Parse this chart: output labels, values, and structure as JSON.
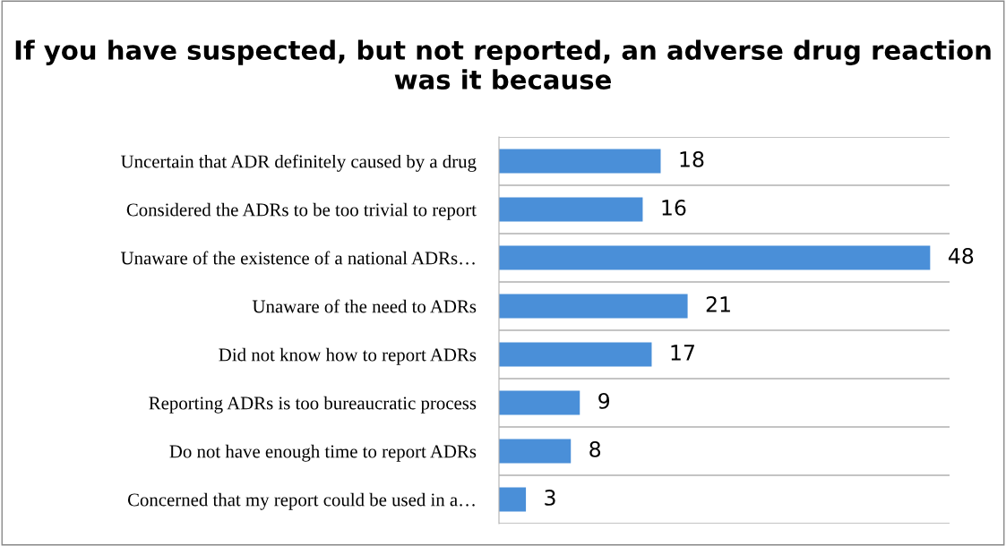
{
  "chart_data": {
    "type": "bar",
    "orientation": "horizontal",
    "title": "If you have suspected, but not reported, an adverse drug reaction was it because",
    "categories": [
      "Uncertain that ADR definitely caused by a drug",
      "Considered the ADRs to be too trivial to report",
      "Unaware of the existence of a national ADRs…",
      "Unaware of the need to ADRs",
      "Did not know how to report ADRs",
      "Reporting ADRs is too bureaucratic process",
      "Do not have enough time to report ADRs",
      "Concerned that my report could be used in a…"
    ],
    "values": [
      18,
      16,
      48,
      21,
      17,
      9,
      8,
      3
    ],
    "color": "#4a8fd8",
    "data_labels": true,
    "grid": "y"
  }
}
